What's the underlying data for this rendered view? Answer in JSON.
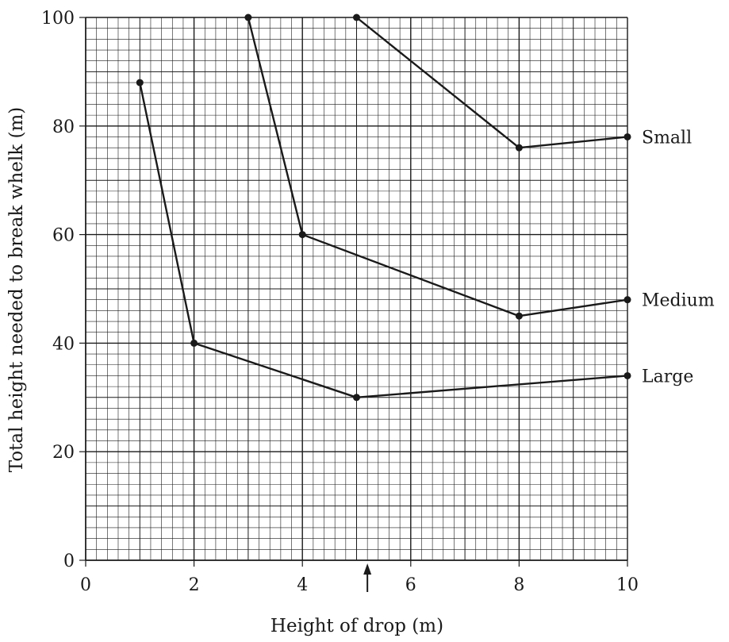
{
  "chart_data": {
    "type": "line",
    "title": "",
    "xlabel": "Height of drop (m)",
    "ylabel": "Total height needed to break whelk (m)",
    "xlim": [
      0,
      10
    ],
    "ylim": [
      0,
      100
    ],
    "x_ticks": [
      "0",
      "2",
      "4",
      "6",
      "8",
      "10"
    ],
    "y_ticks": [
      "0",
      "20",
      "40",
      "60",
      "80",
      "100"
    ],
    "grid": true,
    "series": [
      {
        "name": "Small",
        "points": [
          [
            5,
            100
          ],
          [
            8,
            76
          ],
          [
            10,
            78
          ]
        ]
      },
      {
        "name": "Medium",
        "points": [
          [
            3,
            100
          ],
          [
            4,
            60
          ],
          [
            8,
            45
          ],
          [
            10,
            48
          ]
        ]
      },
      {
        "name": "Large",
        "points": [
          [
            1,
            88
          ],
          [
            2,
            40
          ],
          [
            5,
            30
          ],
          [
            10,
            34
          ]
        ]
      }
    ],
    "annotations": [
      {
        "type": "arrow",
        "x": 5.2
      }
    ],
    "colors": {
      "line": "#1a1a1a",
      "grid_minor": "#1a1a1a",
      "grid_major": "#1a1a1a"
    }
  }
}
